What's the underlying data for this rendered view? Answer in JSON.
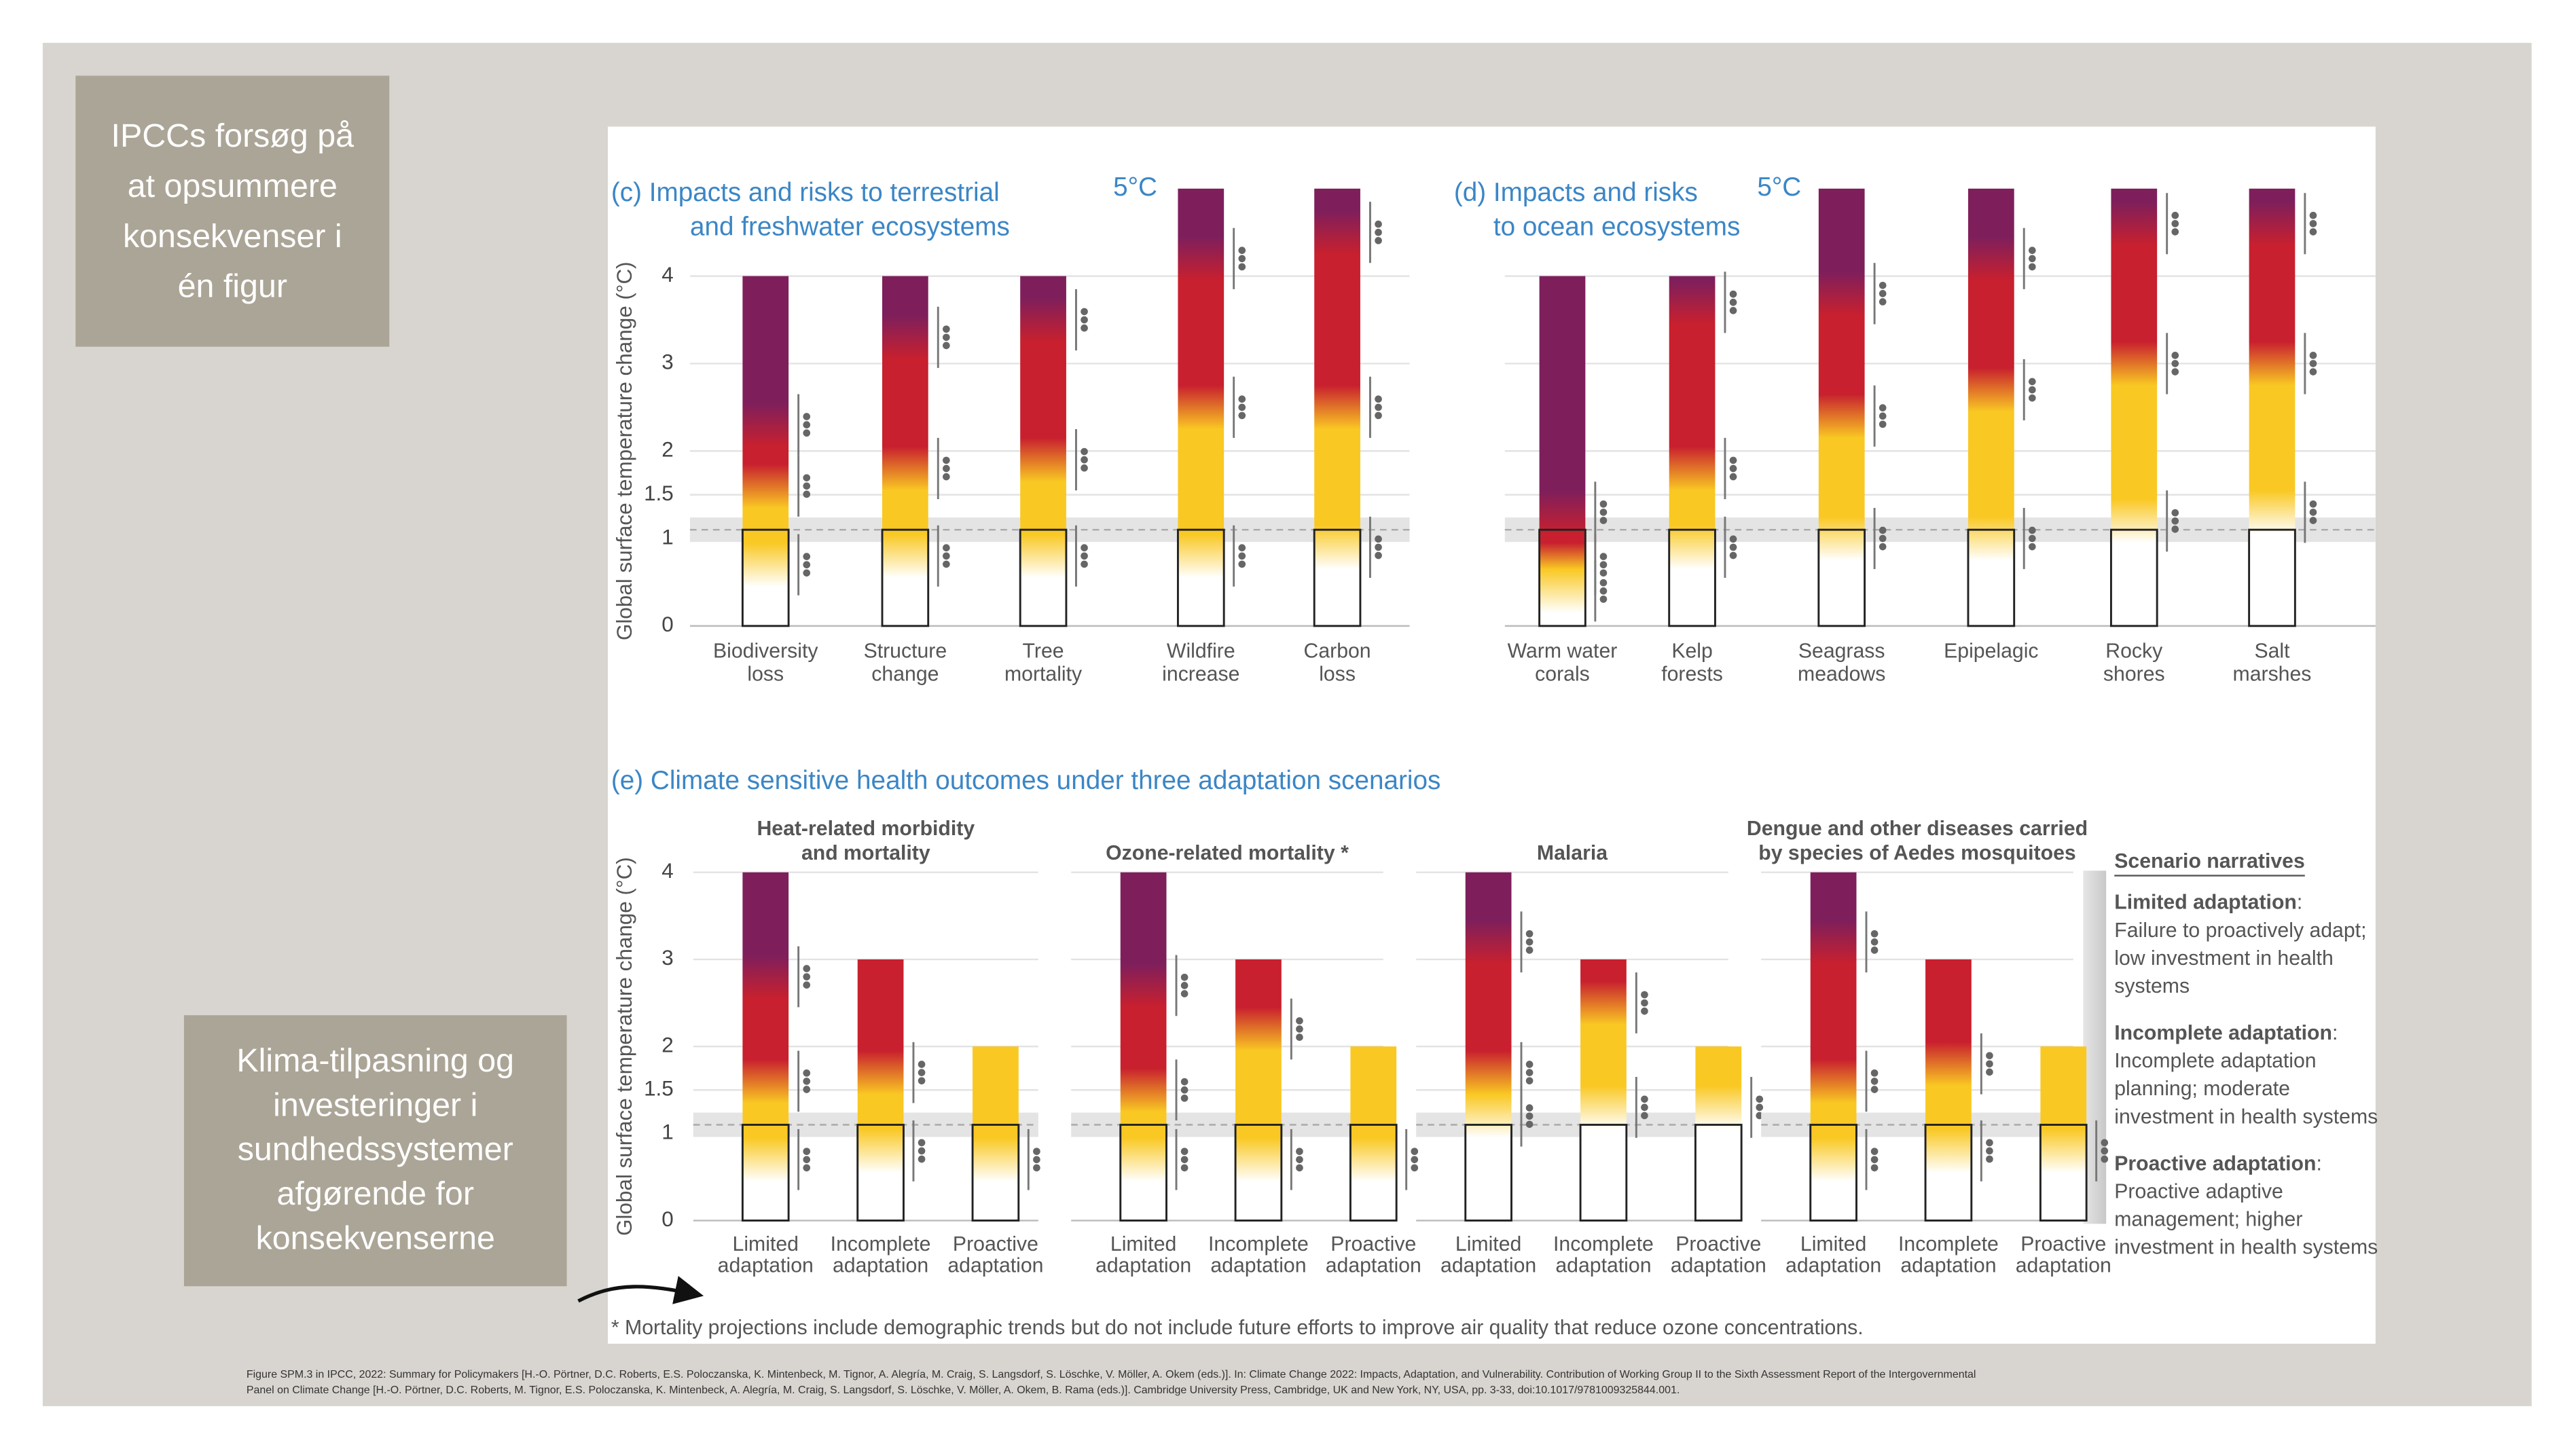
{
  "slide": {
    "note_top": [
      "IPCCs forsøg på",
      "at opsummere",
      "konsekvenser i",
      "én figur"
    ],
    "note_bottom": [
      "Klima-tilpasning og",
      "investeringer i",
      "sundhedssystemer",
      "afgørende for",
      "konsekvenserne"
    ],
    "source": [
      "Figure SPM.3 in IPCC, 2022: Summary for Policymakers [H.-O. Pörtner, D.C. Roberts, E.S. Poloczanska, K. Mintenbeck, M. Tignor, A. Alegría, M. Craig, S. Langsdorf, S. Löschke, V. Möller, A. Okem (eds.)]. In: Climate Change 2022: Impacts, Adaptation, and Vulnerability. Contribution of Working Group II to the Sixth Assessment Report of the Intergovernmental",
      "Panel on Climate Change [H.-O. Pörtner, D.C. Roberts, M. Tignor, E.S. Poloczanska, K. Mintenbeck, A. Alegría, M. Craig, S. Langsdorf, S. Löschke, V. Möller, A. Okem, B. Rama (eds.)]. Cambridge University Press, Cambridge, UK and New York, NY, USA, pp. 3-33, doi:10.1017/9781009325844.001."
    ]
  },
  "chart_data": [
    {
      "type": "ember",
      "title": [
        "(c) Impacts and risks to terrestrial",
        "and freshwater ecosystems"
      ],
      "ylabel": "Global surface temperature change (°C)",
      "top_label": "5°C",
      "categories": [
        [
          "Biodiversity",
          "loss"
        ],
        [
          "Structure",
          "change"
        ],
        [
          "Tree",
          "mortality"
        ],
        [
          "Wildfire",
          "increase"
        ],
        [
          "Carbon",
          "loss"
        ]
      ],
      "values": [
        4,
        4,
        4,
        5,
        5
      ],
      "transitions": [
        [
          0.7,
          1.6,
          2.3
        ],
        [
          0.8,
          1.8,
          3.3
        ],
        [
          0.8,
          1.9,
          3.5
        ],
        [
          0.8,
          2.5,
          4.2
        ],
        [
          0.9,
          2.5,
          4.5
        ]
      ],
      "colors": [
        "#ffffff",
        "#f9c823",
        "#c8202e",
        "#7e1f5c"
      ],
      "band": [
        0.96,
        1.24
      ],
      "ylim": [
        0,
        5
      ],
      "yticks": [
        0,
        1,
        1.5,
        2,
        3,
        4
      ],
      "tick_labels": true,
      "grid": true
    },
    {
      "type": "ember",
      "title": [
        "(d) Impacts and risks",
        "to ocean ecosystems"
      ],
      "top_label": "5°C",
      "categories": [
        [
          "Warm water",
          "corals"
        ],
        [
          "Kelp",
          "forests"
        ],
        [
          "Seagrass",
          "meadows"
        ],
        [
          "Epipelagic"
        ],
        [
          "Rocky",
          "shores"
        ],
        [
          "Salt",
          "marshes"
        ]
      ],
      "values": [
        4,
        4,
        5,
        5,
        5,
        5
      ],
      "transitions": [
        [
          0.4,
          0.7,
          1.3
        ],
        [
          0.9,
          1.8,
          3.7
        ],
        [
          1.0,
          2.4,
          3.8
        ],
        [
          1.0,
          2.7,
          4.2
        ],
        [
          1.2,
          3.0,
          4.6
        ],
        [
          1.3,
          3.0,
          4.6
        ]
      ],
      "colors": [
        "#ffffff",
        "#f9c823",
        "#c8202e",
        "#7e1f5c"
      ],
      "band": [
        0.96,
        1.24
      ],
      "ylim": [
        0,
        5
      ],
      "yticks": [
        0,
        1,
        1.5,
        2,
        3,
        4
      ],
      "tick_labels": false,
      "grid": true
    },
    {
      "type": "ember-groups",
      "title": "(e) Climate sensitive health outcomes under three adaptation scenarios",
      "ylabel": "Global surface temperature change (°C)",
      "categories": [
        [
          "Limited",
          "adaptation"
        ],
        [
          "Incomplete",
          "adaptation"
        ],
        [
          "Proactive",
          "adaptation"
        ]
      ],
      "groups": [
        {
          "title": [
            "Heat-related morbidity",
            "and mortality"
          ],
          "values": [
            4,
            3,
            2
          ],
          "transitions": [
            [
              0.7,
              1.6,
              2.8
            ],
            [
              0.8,
              1.7,
              null
            ],
            [
              0.7,
              null,
              null
            ]
          ]
        },
        {
          "title": [
            "Ozone-related mortality *"
          ],
          "values": [
            4,
            3,
            2
          ],
          "transitions": [
            [
              0.7,
              1.5,
              2.7
            ],
            [
              0.7,
              2.2,
              null
            ],
            [
              0.7,
              null,
              null
            ]
          ]
        },
        {
          "title": [
            "Malaria"
          ],
          "values": [
            4,
            3,
            2
          ],
          "transitions": [
            [
              1.2,
              1.7,
              3.2
            ],
            [
              1.3,
              2.5,
              null
            ],
            [
              1.3,
              null,
              null
            ]
          ]
        },
        {
          "title": [
            "Dengue and other diseases carried",
            "by species of Aedes mosquitoes"
          ],
          "values": [
            4,
            3,
            2
          ],
          "transitions": [
            [
              0.7,
              1.6,
              3.2
            ],
            [
              0.8,
              1.8,
              null
            ],
            [
              0.8,
              null,
              null
            ]
          ]
        }
      ],
      "colors": [
        "#ffffff",
        "#f9c823",
        "#c8202e",
        "#7e1f5c"
      ],
      "band": [
        0.96,
        1.24
      ],
      "ylim": [
        0,
        4
      ],
      "yticks": [
        0,
        1,
        1.5,
        2,
        3,
        4
      ],
      "tick_labels": true,
      "grid": true,
      "footnote": "* Mortality projections include demographic trends but do not include future efforts to improve air quality that reduce ozone concentrations."
    }
  ],
  "scenario_narratives": {
    "title": "Scenario narratives",
    "items": [
      {
        "heading": "Limited adaptation",
        "text": [
          ": ",
          "Failure to proactively adapt;",
          "low investment in health",
          "systems"
        ]
      },
      {
        "heading": "Incomplete adaptation",
        "text": [
          ": ",
          "Incomplete adaptation",
          "planning; moderate",
          "investment in health systems"
        ]
      },
      {
        "heading": "Proactive adaptation",
        "text": [
          ": ",
          "Proactive adaptive",
          "management; higher",
          "investment in health systems"
        ]
      }
    ]
  }
}
